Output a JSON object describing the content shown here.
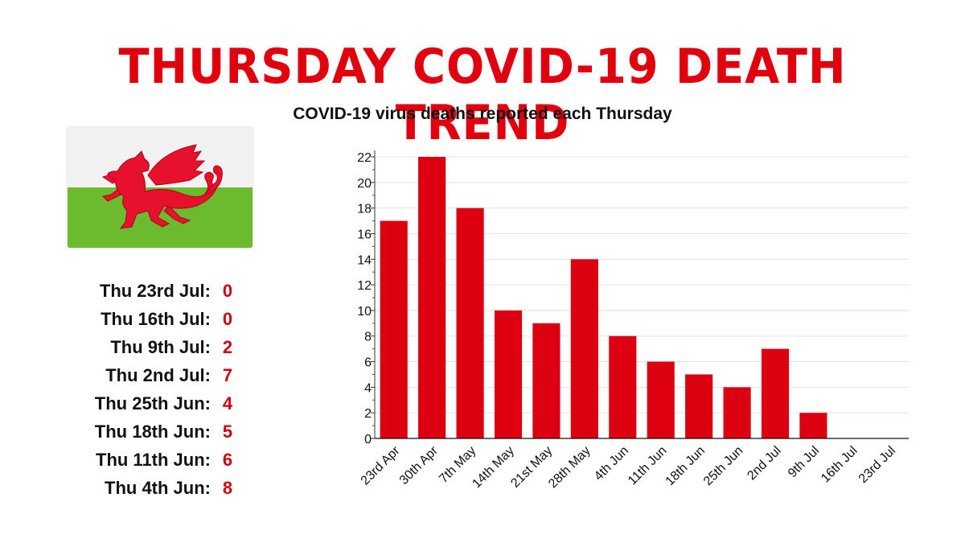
{
  "header": {
    "title": "THURSDAY COVID-19 DEATH TREND"
  },
  "flag": {
    "icon": "welsh-dragon-flag-icon",
    "top_color": "#f2f2f2",
    "bottom_color": "#6cbb2f",
    "dragon_color": "#e8112d"
  },
  "summary": [
    {
      "label": "Thu 23rd Jul:",
      "value": "0"
    },
    {
      "label": "Thu 16th Jul:",
      "value": "0"
    },
    {
      "label": "Thu 9th Jul:",
      "value": "2"
    },
    {
      "label": "Thu 2nd Jul:",
      "value": "7"
    },
    {
      "label": "Thu 25th Jun:",
      "value": "4"
    },
    {
      "label": "Thu 18th Jun:",
      "value": "5"
    },
    {
      "label": "Thu 11th Jun:",
      "value": "6"
    },
    {
      "label": "Thu 4th Jun:",
      "value": "8"
    }
  ],
  "colors": {
    "accent": "#e0000e",
    "bar": "#dc0011",
    "grid": "#e3e3e3"
  },
  "chart_data": {
    "type": "bar",
    "title": "COVID-19 virus deaths reported each Thursday",
    "xlabel": "",
    "ylabel": "",
    "categories": [
      "23rd Apr",
      "30th Apr",
      "7th May",
      "14th May",
      "21st May",
      "28th May",
      "4th Jun",
      "11th Jun",
      "18th Jun",
      "25th Jun",
      "2nd Jul",
      "9th Jul",
      "16th Jul",
      "23rd Jul"
    ],
    "values": [
      17,
      22,
      18,
      10,
      9,
      14,
      8,
      6,
      5,
      4,
      7,
      2,
      0,
      0
    ],
    "ylim": [
      0,
      22
    ],
    "yticks": [
      0,
      2,
      4,
      6,
      8,
      10,
      12,
      14,
      16,
      18,
      20,
      22
    ],
    "grid": true
  }
}
